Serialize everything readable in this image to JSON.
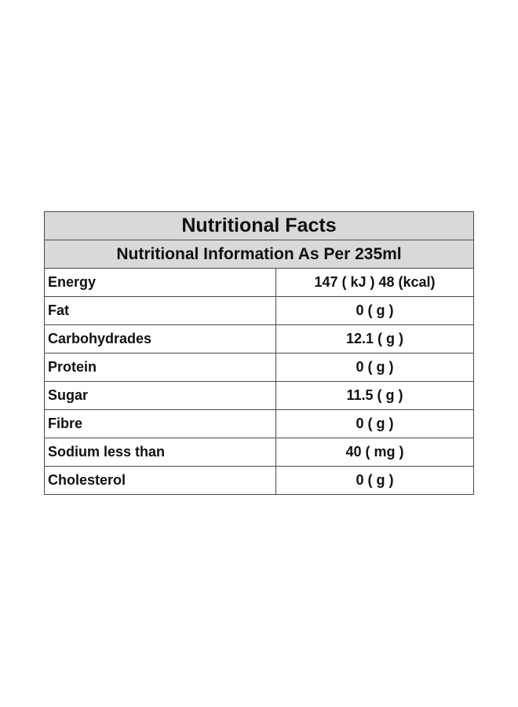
{
  "table": {
    "title": "Nutritional Facts",
    "subtitle": "Nutritional Information As Per 235ml",
    "rows": [
      {
        "name": "Energy",
        "value": "147 ( kJ ) 48 (kcal)"
      },
      {
        "name": "Fat",
        "value": "0 ( g )"
      },
      {
        "name": "Carbohydrades",
        "value": "12.1 ( g )"
      },
      {
        "name": "Protein",
        "value": "0 ( g )"
      },
      {
        "name": "Sugar",
        "value": "11.5 ( g )"
      },
      {
        "name": "Fibre",
        "value": "0 ( g )"
      },
      {
        "name": "Sodium less than",
        "value": "40 ( mg )"
      },
      {
        "name": "Cholesterol",
        "value": "0 ( g )"
      }
    ]
  }
}
